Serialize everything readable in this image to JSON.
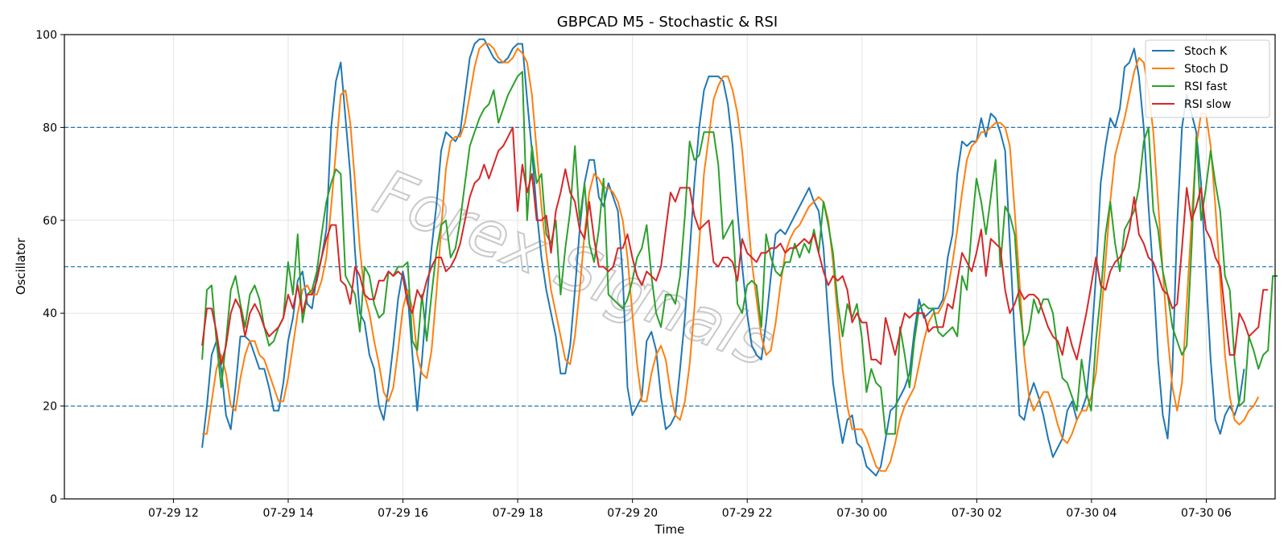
{
  "chart_data": {
    "type": "line",
    "title": "GBPCAD M5 - Stochastic & RSI",
    "xlabel": "Time",
    "ylabel": "Oscillator",
    "ylim": [
      0,
      100
    ],
    "yticks": [
      0,
      20,
      40,
      60,
      80,
      100
    ],
    "xlim": [
      -1.9,
      19.2
    ],
    "xticks": [
      {
        "label": "07-29 12",
        "x": 0
      },
      {
        "label": "07-29 14",
        "x": 2
      },
      {
        "label": "07-29 16",
        "x": 4
      },
      {
        "label": "07-29 18",
        "x": 6
      },
      {
        "label": "07-29 20",
        "x": 8
      },
      {
        "label": "07-29 22",
        "x": 10
      },
      {
        "label": "07-30 00",
        "x": 12
      },
      {
        "label": "07-30 02",
        "x": 14
      },
      {
        "label": "07-30 04",
        "x": 16
      },
      {
        "label": "07-30 06",
        "x": 18
      }
    ],
    "x_start": 0.5,
    "x_step": 0.0833,
    "hlines": [
      {
        "y": 80,
        "color": "#1f77b4",
        "style": "dashed"
      },
      {
        "y": 50,
        "color": "#1f77b4",
        "style": "dashed"
      },
      {
        "y": 20,
        "color": "#1f77b4",
        "style": "dashed"
      }
    ],
    "grid": true,
    "legend_position": "top-right",
    "watermark": "Forex Signals",
    "series": [
      {
        "name": "Stoch K",
        "color": "#1f77b4",
        "values": [
          11,
          20,
          31,
          34,
          28,
          18,
          15,
          24,
          35,
          35,
          34,
          31,
          28,
          28,
          24,
          19,
          19,
          25,
          34,
          39,
          47,
          49,
          42,
          41,
          48,
          52,
          58,
          80,
          90,
          94,
          82,
          70,
          53,
          40,
          38,
          31,
          28,
          20,
          17,
          24,
          33,
          43,
          49,
          44,
          31,
          19,
          30,
          43,
          54,
          63,
          75,
          79,
          78,
          77,
          79,
          87,
          95,
          98,
          99,
          99,
          97,
          95,
          94,
          94,
          95,
          97,
          98,
          98,
          86,
          75,
          62,
          52,
          45,
          40,
          35,
          27,
          27,
          33,
          45,
          58,
          68,
          73,
          73,
          65,
          63,
          68,
          65,
          62,
          48,
          24,
          18,
          20,
          22,
          34,
          36,
          32,
          22,
          15,
          16,
          18,
          28,
          39,
          53,
          68,
          80,
          88,
          91,
          91,
          91,
          90,
          85,
          76,
          62,
          50,
          40,
          33,
          31,
          30,
          38,
          48,
          57,
          58,
          57,
          59,
          61,
          63,
          65,
          67,
          64,
          62,
          54,
          39,
          25,
          18,
          12,
          17,
          18,
          12,
          11,
          7,
          6,
          5,
          7,
          13,
          19,
          20,
          22,
          24,
          27,
          36,
          43,
          39,
          40,
          41,
          41,
          43,
          52,
          57,
          70,
          77,
          76,
          77,
          77,
          82,
          78,
          83,
          82,
          79,
          75,
          55,
          35,
          18,
          17,
          22,
          25,
          22,
          18,
          13,
          9,
          11,
          13,
          19,
          21,
          17,
          19,
          22,
          33,
          48,
          68,
          76,
          82,
          80,
          84,
          93,
          94,
          97,
          91,
          80,
          63,
          48,
          30,
          18,
          13,
          28,
          59,
          80,
          87,
          83,
          79,
          68,
          49,
          30,
          17,
          14,
          18,
          20,
          18,
          21,
          28
        ]
      },
      {
        "name": "Stoch D",
        "color": "#ff7f0e",
        "values": [
          14,
          14,
          21,
          28,
          31,
          27,
          20,
          19,
          26,
          31,
          34,
          34,
          31,
          30,
          27,
          24,
          21,
          21,
          26,
          33,
          40,
          45,
          46,
          44,
          44,
          47,
          52,
          63,
          75,
          87,
          88,
          81,
          68,
          54,
          44,
          40,
          34,
          29,
          23,
          21,
          24,
          32,
          41,
          45,
          41,
          31,
          27,
          26,
          32,
          44,
          58,
          71,
          77,
          78,
          78,
          81,
          87,
          93,
          97,
          98,
          98,
          97,
          95,
          94,
          94,
          95,
          97,
          96,
          94,
          87,
          75,
          63,
          53,
          45,
          40,
          35,
          30,
          29,
          35,
          45,
          57,
          66,
          70,
          69,
          67,
          67,
          66,
          64,
          60,
          52,
          40,
          29,
          21,
          21,
          27,
          31,
          33,
          30,
          23,
          18,
          17,
          21,
          29,
          41,
          55,
          70,
          78,
          86,
          89,
          91,
          91,
          88,
          83,
          75,
          63,
          51,
          43,
          35,
          31,
          32,
          38,
          46,
          53,
          56,
          58,
          59,
          61,
          63,
          64,
          65,
          64,
          60,
          51,
          39,
          28,
          20,
          15,
          15,
          15,
          13,
          10,
          7,
          6,
          6,
          8,
          12,
          17,
          20,
          22,
          24,
          29,
          34,
          38,
          40,
          40,
          42,
          45,
          51,
          58,
          66,
          73,
          76,
          77,
          79,
          79,
          80,
          81,
          81,
          80,
          76,
          62,
          47,
          31,
          22,
          19,
          21,
          23,
          23,
          20,
          16,
          13,
          12,
          14,
          17,
          19,
          19,
          22,
          27,
          38,
          51,
          64,
          74,
          78,
          82,
          87,
          92,
          95,
          94,
          88,
          79,
          64,
          49,
          35,
          24,
          19,
          25,
          42,
          60,
          76,
          83,
          83,
          76,
          63,
          47,
          31,
          22,
          17,
          16,
          17,
          19,
          20,
          22
        ]
      },
      {
        "name": "RSI fast",
        "color": "#2ca02c",
        "values": [
          30,
          45,
          46,
          34,
          24,
          34,
          45,
          48,
          42,
          37,
          44,
          46,
          43,
          37,
          33,
          34,
          37,
          39,
          51,
          44,
          57,
          38,
          44,
          45,
          49,
          57,
          64,
          68,
          71,
          70,
          48,
          46,
          44,
          36,
          50,
          48,
          42,
          39,
          40,
          49,
          48,
          50,
          50,
          51,
          34,
          32,
          44,
          34,
          44,
          53,
          59,
          60,
          52,
          54,
          60,
          68,
          76,
          79,
          82,
          84,
          85,
          88,
          81,
          84,
          87,
          89,
          91,
          92,
          60,
          76,
          68,
          70,
          57,
          55,
          60,
          44,
          54,
          62,
          76,
          60,
          68,
          55,
          51,
          58,
          69,
          44,
          43,
          42,
          41,
          43,
          47,
          52,
          54,
          59,
          48,
          40,
          37,
          44,
          44,
          42,
          48,
          61,
          77,
          73,
          74,
          79,
          79,
          79,
          72,
          56,
          58,
          60,
          42,
          40,
          46,
          47,
          46,
          37,
          57,
          52,
          49,
          48,
          51,
          51,
          55,
          52,
          55,
          53,
          58,
          53,
          64,
          59,
          53,
          42,
          35,
          42,
          39,
          42,
          35,
          23,
          28,
          25,
          24,
          14,
          14,
          14,
          37,
          31,
          24,
          34,
          41,
          42,
          41,
          41,
          36,
          35,
          36,
          37,
          35,
          48,
          45,
          58,
          69,
          64,
          57,
          65,
          73,
          50,
          63,
          61,
          57,
          42,
          33,
          36,
          43,
          40,
          43,
          43,
          40,
          32,
          26,
          25,
          22,
          19,
          30,
          23,
          19,
          34,
          44,
          57,
          64,
          55,
          49,
          58,
          60,
          62,
          67,
          77,
          80,
          62,
          58,
          49,
          44,
          37,
          34,
          31,
          33,
          54,
          78,
          60,
          67,
          75,
          68,
          62,
          48,
          45,
          30,
          20,
          21,
          35,
          32,
          28,
          31,
          32,
          48,
          48
        ]
      },
      {
        "name": "RSI slow",
        "color": "#d62728",
        "values": [
          33,
          41,
          41,
          36,
          29,
          33,
          40,
          43,
          41,
          35,
          40,
          42,
          40,
          37,
          35,
          36,
          37,
          39,
          44,
          41,
          46,
          40,
          44,
          44,
          47,
          52,
          56,
          59,
          59,
          47,
          46,
          42,
          50,
          48,
          44,
          43,
          43,
          47,
          47,
          49,
          48,
          49,
          48,
          42,
          40,
          45,
          43,
          47,
          50,
          52,
          52,
          49,
          50,
          52,
          55,
          60,
          65,
          68,
          69,
          72,
          69,
          72,
          75,
          76,
          78,
          80,
          62,
          72,
          66,
          70,
          60,
          60,
          61,
          53,
          62,
          66,
          71,
          66,
          64,
          58,
          56,
          64,
          56,
          50,
          50,
          49,
          50,
          54,
          54,
          57,
          52,
          48,
          46,
          49,
          48,
          47,
          50,
          58,
          66,
          64,
          67,
          67,
          67,
          61,
          58,
          59,
          60,
          51,
          50,
          52,
          52,
          51,
          47,
          56,
          53,
          52,
          51,
          53,
          53,
          54,
          54,
          55,
          53,
          54,
          54,
          55,
          56,
          55,
          57,
          53,
          49,
          46,
          48,
          47,
          48,
          45,
          38,
          40,
          38,
          38,
          30,
          30,
          29,
          39,
          35,
          31,
          36,
          40,
          39,
          40,
          40,
          40,
          36,
          37,
          37,
          37,
          42,
          41,
          47,
          53,
          51,
          49,
          53,
          58,
          48,
          56,
          55,
          54,
          45,
          40,
          42,
          45,
          43,
          44,
          44,
          43,
          40,
          37,
          35,
          34,
          31,
          37,
          33,
          30,
          35,
          40,
          46,
          52,
          46,
          45,
          49,
          51,
          52,
          54,
          58,
          65,
          57,
          55,
          52,
          51,
          48,
          45,
          44,
          41,
          42,
          54,
          67,
          60,
          63,
          67,
          58,
          56,
          52,
          50,
          40,
          31,
          31,
          40,
          38,
          35,
          36,
          37,
          45,
          45
        ]
      }
    ]
  }
}
